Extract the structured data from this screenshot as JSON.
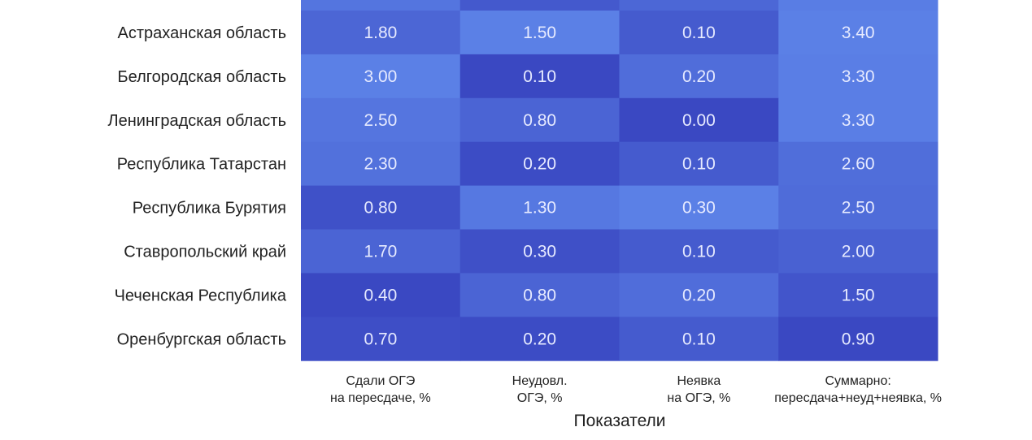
{
  "chart_data": {
    "type": "heatmap",
    "title": "",
    "xlabel": "Показатели",
    "ylabel": "",
    "columns": [
      "Сдали ОГЭ\nна пересдаче, %",
      "Неудовл.\nОГЭ, %",
      "Неявка\nна ОГЭ, %",
      "Суммарно:\nпересдача+неуд+неявка, %"
    ],
    "rows": [
      "Астраханская область",
      "Белгородская область",
      "Ленинградская область",
      "Республика Татарстан",
      "Республика Бурятия",
      "Ставропольский край",
      "Чеченская Республика",
      "Оренбургская область"
    ],
    "values": [
      [
        1.8,
        1.5,
        0.1,
        3.4
      ],
      [
        3.0,
        0.1,
        0.2,
        3.3
      ],
      [
        2.5,
        0.8,
        0.0,
        3.3
      ],
      [
        2.3,
        0.2,
        0.1,
        2.6
      ],
      [
        0.8,
        1.3,
        0.3,
        2.5
      ],
      [
        1.7,
        0.3,
        0.1,
        2.0
      ],
      [
        0.4,
        0.8,
        0.2,
        1.5
      ],
      [
        0.7,
        0.2,
        0.1,
        0.9
      ]
    ],
    "value_format": "0.00",
    "colormap": {
      "low": "#3a48c2",
      "high": "#5b80e6"
    },
    "grid": false,
    "legend": "none"
  }
}
